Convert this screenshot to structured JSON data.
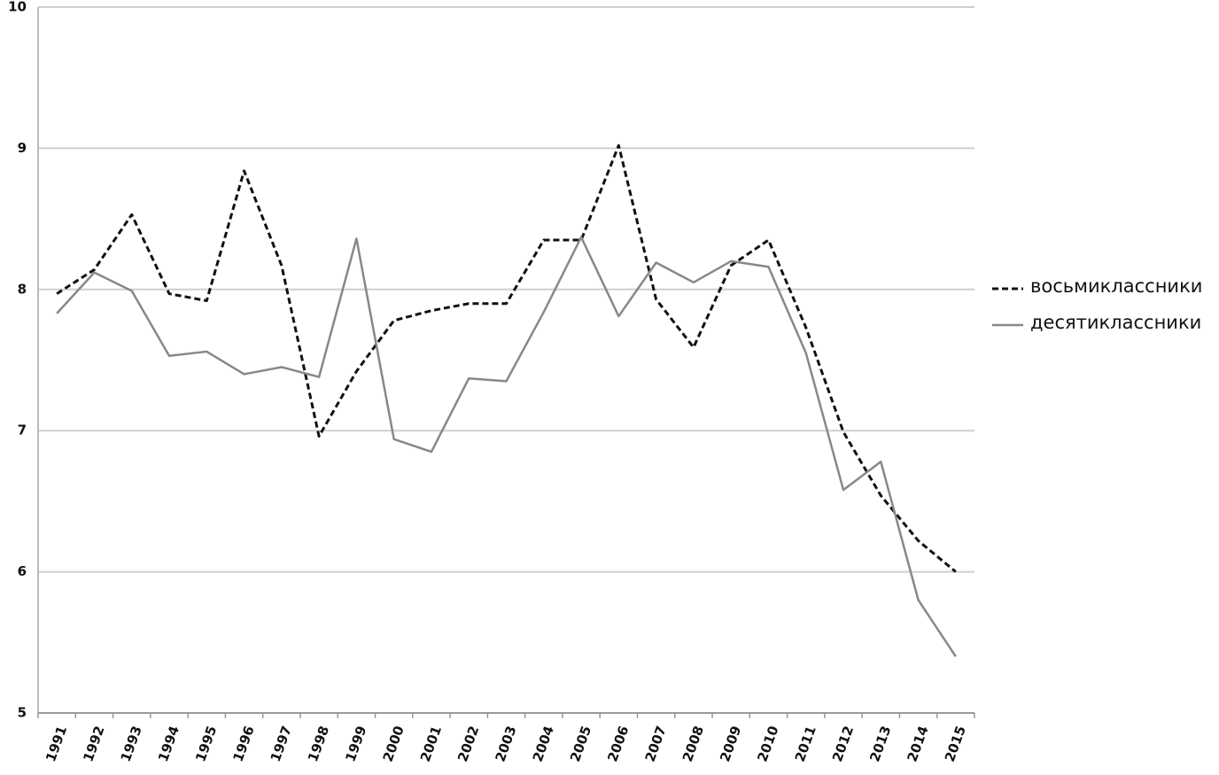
{
  "chart_data": {
    "type": "line",
    "categories": [
      "1991",
      "1992",
      "1993",
      "1994",
      "1995",
      "1996",
      "1997",
      "1998",
      "1999",
      "2000",
      "2001",
      "2002",
      "2003",
      "2004",
      "2005",
      "2006",
      "2007",
      "2008",
      "2009",
      "2010",
      "2011",
      "2012",
      "2013",
      "2014",
      "2015"
    ],
    "series": [
      {
        "name": "восьмиклассники",
        "color": "#111111",
        "style": "dashed",
        "values": [
          7.97,
          8.14,
          8.53,
          7.97,
          7.92,
          8.84,
          8.17,
          6.96,
          7.42,
          7.78,
          7.85,
          7.9,
          7.9,
          8.35,
          8.35,
          9.02,
          7.93,
          7.59,
          8.17,
          8.35,
          7.73,
          6.99,
          6.54,
          6.22,
          6.0
        ]
      },
      {
        "name": "десятиклассники",
        "color": "#888888",
        "style": "solid",
        "values": [
          7.83,
          8.12,
          7.99,
          7.53,
          7.56,
          7.4,
          7.45,
          7.38,
          8.36,
          6.94,
          6.85,
          7.37,
          7.35,
          7.84,
          8.37,
          7.81,
          8.19,
          8.05,
          8.2,
          8.16,
          7.55,
          6.58,
          6.78,
          5.8,
          5.4
        ]
      }
    ],
    "ylim": [
      5,
      10
    ],
    "yticks": [
      5,
      6,
      7,
      8,
      9,
      10
    ],
    "grid": true,
    "legend": "right"
  }
}
